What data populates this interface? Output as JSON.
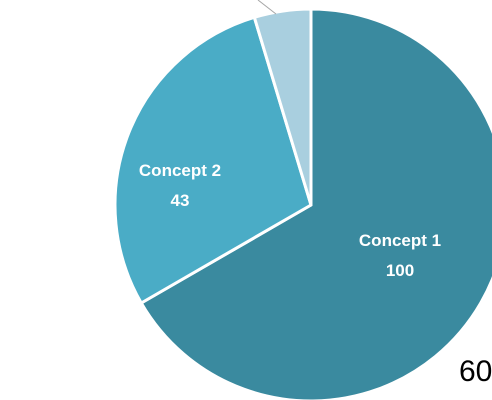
{
  "chart_data": {
    "type": "pie",
    "slices": [
      {
        "label": "Concept 1",
        "value": 100,
        "value_label": "100",
        "color": "#3a8a9f",
        "show_label": true
      },
      {
        "label": "Concept 2",
        "value": 43,
        "value_label": "43",
        "color": "#4aacc6",
        "show_label": true
      },
      {
        "label": "",
        "value": 7,
        "value_label": "",
        "color": "#a9cfdf",
        "show_label": false
      }
    ],
    "start": "12 o'clock",
    "direction": "clockwise",
    "slice_border_color": "#ffffff",
    "legend": "none"
  },
  "page_number": "60"
}
